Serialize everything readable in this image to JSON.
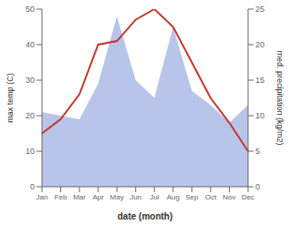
{
  "chart_data": {
    "type": "line",
    "xlabel": "date (month)",
    "ylabel": "max temp (C)",
    "y2label": "med. precipitation (kg/m2)",
    "categories": [
      "Jan",
      "Feb",
      "Mar",
      "Apr",
      "May",
      "Jun",
      "Jul",
      "Aug",
      "Sep",
      "Oct",
      "Nov",
      "Dec"
    ],
    "series": [
      {
        "type": "area",
        "axis": "y2",
        "color": "#b8c4ea",
        "values": [
          10.5,
          10.0,
          9.5,
          14.5,
          24.0,
          15.0,
          12.5,
          22.5,
          13.5,
          11.5,
          9.0,
          11.5
        ]
      },
      {
        "type": "line",
        "color": "#c0392b",
        "values": [
          15,
          19,
          26,
          40,
          41,
          47,
          50,
          45,
          35,
          25,
          18,
          10
        ]
      }
    ],
    "ylim": [
      0,
      50
    ],
    "yticks": [
      0,
      10,
      20,
      30,
      40,
      50
    ],
    "y2lim": [
      0,
      25
    ],
    "y2ticks": [
      0,
      5,
      10,
      15,
      20,
      25
    ],
    "grid": false
  }
}
